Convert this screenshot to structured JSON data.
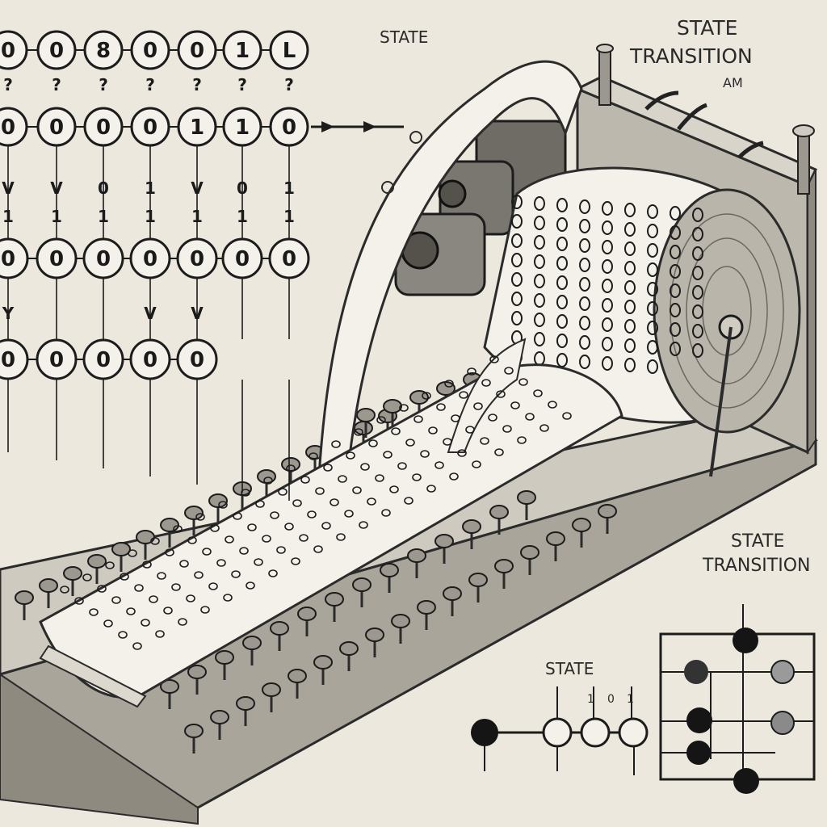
{
  "labels": {
    "state_top": "STATE",
    "state_transition_top_1": "STATE",
    "state_transition_top_2": "TRANSITION",
    "state_transition_top_3": "AM",
    "state_transition_right_1": "STATE",
    "state_transition_right_2": "TRANSITION",
    "state_bottom": "STATE"
  },
  "tape_rows": {
    "row1": [
      "0",
      "0",
      "8",
      "0",
      "0",
      "1",
      "L"
    ],
    "row2": [
      "0",
      "0",
      "0",
      "0",
      "1",
      "1",
      "0"
    ],
    "row3": [
      "0",
      "0",
      "0",
      "0",
      "0",
      "0",
      "0"
    ],
    "row4": [
      "0",
      "0",
      "0",
      "0",
      "0"
    ]
  },
  "small_marks": {
    "row1": [
      "?",
      "?",
      "?",
      "?",
      "?",
      "?",
      "?"
    ],
    "row2": [
      "V",
      "V",
      "0",
      "1",
      "V",
      "0",
      "1"
    ],
    "row3": [
      "1",
      "1",
      "1",
      "1",
      "1",
      "1",
      "1"
    ],
    "row4": [
      "Y",
      "",
      "",
      "V",
      "V"
    ]
  },
  "bottom_state_digits": [
    "1",
    "0",
    "1"
  ],
  "colors": {
    "background": "#ece8de",
    "ink": "#1a1a1a",
    "metal": "#8c8a84",
    "paper": "#f4f1ea",
    "dark_node": "#151515",
    "gray_node": "#8a8a8a"
  }
}
